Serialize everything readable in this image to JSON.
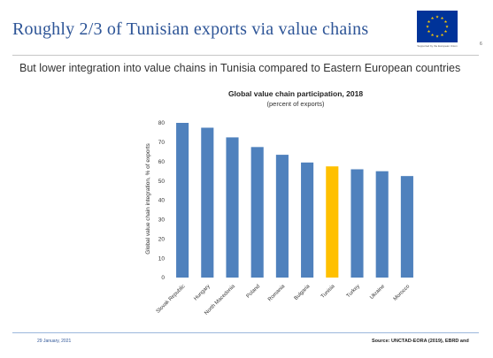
{
  "slide": {
    "title": "Roughly 2/3 of Tunisian exports via value chains",
    "subtitle": "But lower integration into value chains in Tunisia compared to Eastern European countries",
    "logo_caption": "Supported by the European Union",
    "page_number": "6"
  },
  "footer": {
    "date": "29 January, 2021",
    "source": "Source: UNCTAD-EORA (2019), EBRD and"
  },
  "colors": {
    "title": "#2e5597",
    "bar": "#4f81bd",
    "highlight": "#ffc000",
    "eu_flag": "#003399",
    "eu_stars": "#ffcc00"
  },
  "icons": {
    "logo": "eu-flag-icon"
  },
  "chart_data": {
    "type": "bar",
    "title": "Global value chain participation, 2018",
    "subtitle": "(percent of exports)",
    "ylabel": "Global value chain integration, % of exports",
    "xlabel": "",
    "ylim": [
      0,
      80
    ],
    "yticks": [
      0,
      10,
      20,
      30,
      40,
      50,
      60,
      70,
      80
    ],
    "grid": false,
    "categories": [
      "Slovak Republic",
      "Hungary",
      "North Macedonia",
      "Poland",
      "Romania",
      "Bulgaria",
      "Tunisia",
      "Turkey",
      "Ukraine",
      "Morocco"
    ],
    "values": [
      80,
      77.5,
      72.5,
      67.5,
      63.5,
      59.5,
      57.5,
      56,
      55,
      52.5
    ],
    "highlight": "Tunisia"
  }
}
